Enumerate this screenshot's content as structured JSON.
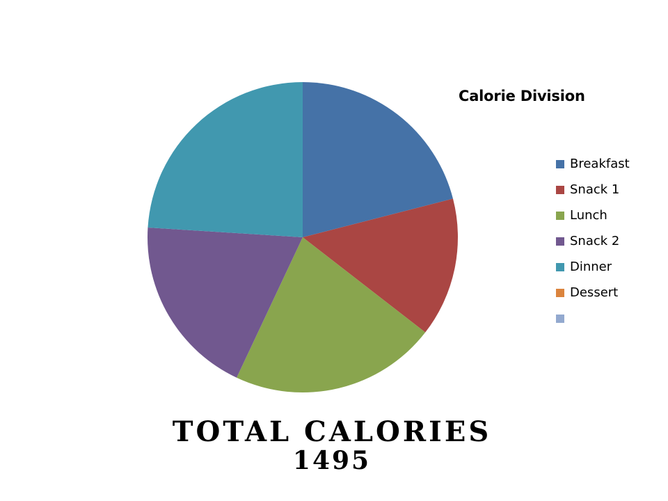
{
  "chart_data": {
    "type": "pie",
    "title": "Calorie Division",
    "categories": [
      "Breakfast",
      "Snack 1",
      "Lunch",
      "Snack 2",
      "Dinner",
      "Dessert",
      ""
    ],
    "values": [
      21,
      14.5,
      21.5,
      19,
      24,
      0,
      0
    ],
    "colors": [
      "#4572A7",
      "#AA4643",
      "#89A54E",
      "#71588F",
      "#4198AF",
      "#DB843D",
      "#93A9CF"
    ],
    "legend_position": "right"
  },
  "footer": {
    "line1": "Total Calories",
    "line2": "1495"
  }
}
